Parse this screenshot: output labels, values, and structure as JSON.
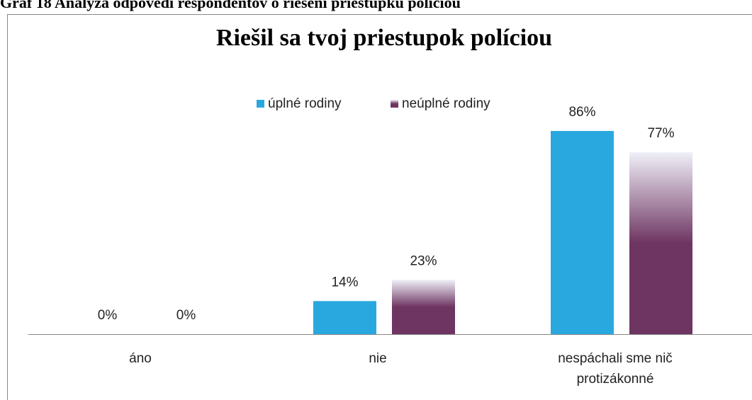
{
  "caption": "Graf 18 Analýza odpovedí respondentov o riešení priestupku políciou",
  "chart_data": {
    "type": "bar",
    "title": "Riešil sa tvoj priestupok políciou",
    "categories": [
      "áno",
      "nie",
      "nespáchali sme nič protizákonné"
    ],
    "series": [
      {
        "name": "úplné rodiny",
        "color": "#29a8e0",
        "values": [
          0,
          14,
          86
        ],
        "value_labels": [
          "0%",
          "14%",
          "86%"
        ]
      },
      {
        "name": "neúplné rodiny",
        "color": "#6e3562",
        "values": [
          0,
          23,
          77
        ],
        "value_labels": [
          "0%",
          "23%",
          "77%"
        ]
      }
    ],
    "ylim": [
      0,
      100
    ],
    "legend": "top"
  }
}
